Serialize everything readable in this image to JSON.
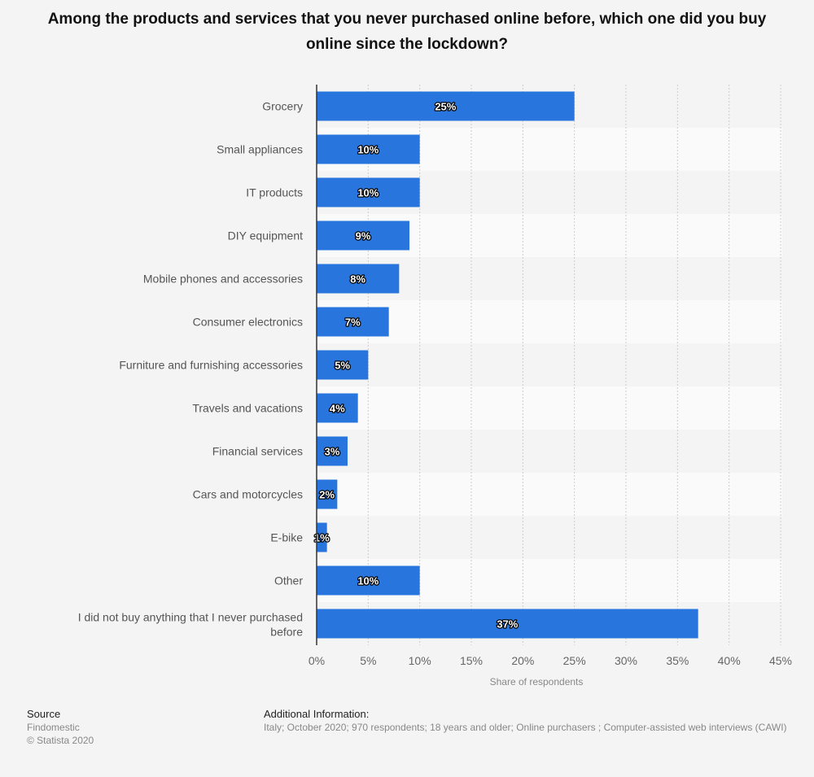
{
  "chart_data": {
    "type": "bar",
    "orientation": "horizontal",
    "title": "Among the products and services that you never purchased online before, which one did you buy online since the lockdown?",
    "categories": [
      "Grocery",
      "Small appliances",
      "IT products",
      "DIY equipment",
      "Mobile phones and accessories",
      "Consumer electronics",
      "Furniture and furnishing accessories",
      "Travels and vacations",
      "Financial services",
      "Cars and motorcycles",
      "E-bike",
      "Other",
      "I did not buy anything that I never purchased before"
    ],
    "values": [
      25,
      10,
      10,
      9,
      8,
      7,
      5,
      4,
      3,
      2,
      1,
      10,
      37
    ],
    "value_labels": [
      "25%",
      "10%",
      "10%",
      "9%",
      "8%",
      "7%",
      "5%",
      "4%",
      "3%",
      "2%",
      "1%",
      "10%",
      "37%"
    ],
    "xlabel": "Share of respondents",
    "ylabel": "",
    "xlim": [
      0,
      45
    ],
    "xticks": [
      "0%",
      "5%",
      "10%",
      "15%",
      "20%",
      "25%",
      "30%",
      "35%",
      "40%",
      "45%"
    ],
    "grid": true,
    "legend": "none",
    "bar_color": "#2876dd"
  },
  "footer": {
    "source_heading": "Source",
    "source_name": "Findomestic",
    "copyright": "© Statista 2020",
    "info_heading": "Additional Information:",
    "info_text": "Italy; October 2020; 970 respondents; 18 years and older; Online purchasers ; Computer-assisted web interviews (CAWI)"
  }
}
